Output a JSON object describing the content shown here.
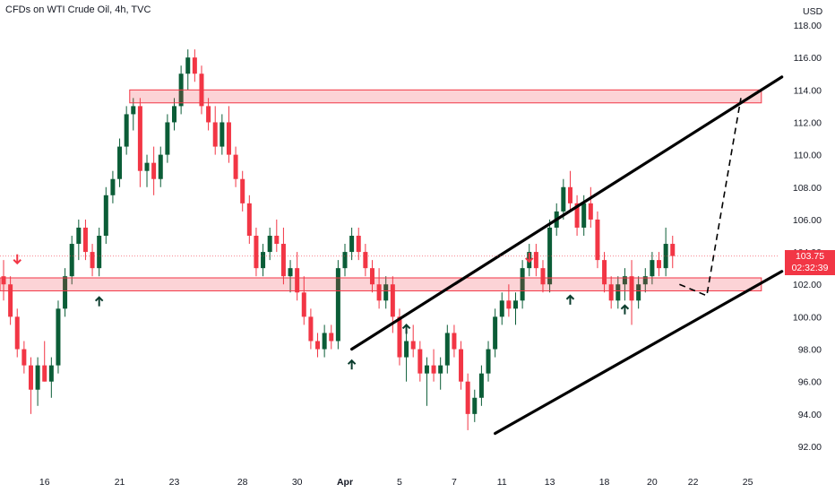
{
  "header": {
    "title": "CFDs on WTI Crude Oil, 4h, TVC",
    "currency": "USD"
  },
  "last_price": {
    "value": "103.75",
    "countdown": "02:32:39"
  },
  "colors": {
    "up": "#089981",
    "up_dark": "#0b5d37",
    "down": "#f23645",
    "zone_fill": "rgba(242,54,69,0.22)",
    "zone_stroke": "#f23645",
    "channel": "#000000"
  },
  "chart_data": {
    "type": "candlestick",
    "title": "CFDs on WTI Crude Oil, 4h, TVC",
    "ylim": [
      91,
      119
    ],
    "y_ticks": [
      "92.00",
      "94.00",
      "96.00",
      "98.00",
      "100.00",
      "102.00",
      "104.00",
      "106.00",
      "108.00",
      "110.00",
      "112.00",
      "114.00",
      "116.00",
      "118.00"
    ],
    "x_ticks": [
      {
        "label": "16",
        "bar": 6
      },
      {
        "label": "21",
        "bar": 17
      },
      {
        "label": "23",
        "bar": 25
      },
      {
        "label": "28",
        "bar": 35
      },
      {
        "label": "30",
        "bar": 43
      },
      {
        "label": "Apr",
        "bar": 50,
        "bold": true
      },
      {
        "label": "5",
        "bar": 58
      },
      {
        "label": "7",
        "bar": 66
      },
      {
        "label": "11",
        "bar": 73
      },
      {
        "label": "13",
        "bar": 80
      },
      {
        "label": "18",
        "bar": 88
      },
      {
        "label": "20",
        "bar": 95
      },
      {
        "label": "22",
        "bar": 101
      },
      {
        "label": "25",
        "bar": 109
      }
    ],
    "candles": [
      [
        102.5,
        103.5,
        101.0,
        102.0
      ],
      [
        102.0,
        102.5,
        99.5,
        100.0
      ],
      [
        100.0,
        100.5,
        97.5,
        98.0
      ],
      [
        98.0,
        98.5,
        96.5,
        97.0
      ],
      [
        97.0,
        97.5,
        94.0,
        95.5
      ],
      [
        95.5,
        97.5,
        94.5,
        97.0
      ],
      [
        97.0,
        98.5,
        96.0,
        96.0
      ],
      [
        96.0,
        97.5,
        95.0,
        97.0
      ],
      [
        97.0,
        101.0,
        96.5,
        100.5
      ],
      [
        100.5,
        103.0,
        100.0,
        102.5
      ],
      [
        102.5,
        105.0,
        102.0,
        104.5
      ],
      [
        104.5,
        106.0,
        103.5,
        105.5
      ],
      [
        105.5,
        106.0,
        103.5,
        104.0
      ],
      [
        104.0,
        104.5,
        102.5,
        103.0
      ],
      [
        103.0,
        105.5,
        102.5,
        105.0
      ],
      [
        105.0,
        108.0,
        104.5,
        107.5
      ],
      [
        107.5,
        109.0,
        107.0,
        108.5
      ],
      [
        108.5,
        111.0,
        108.0,
        110.5
      ],
      [
        110.5,
        113.0,
        110.0,
        112.5
      ],
      [
        112.5,
        113.5,
        111.5,
        113.0
      ],
      [
        113.0,
        113.5,
        108.0,
        109.0
      ],
      [
        109.0,
        110.0,
        108.0,
        109.5
      ],
      [
        109.5,
        110.5,
        107.5,
        108.5
      ],
      [
        108.5,
        110.5,
        108.0,
        110.0
      ],
      [
        110.0,
        112.5,
        109.5,
        112.0
      ],
      [
        112.0,
        113.5,
        111.5,
        113.0
      ],
      [
        113.0,
        115.5,
        112.5,
        115.0
      ],
      [
        115.0,
        116.5,
        114.0,
        116.0
      ],
      [
        116.0,
        116.5,
        114.5,
        115.0
      ],
      [
        115.0,
        115.5,
        112.5,
        113.0
      ],
      [
        113.0,
        113.5,
        111.5,
        112.0
      ],
      [
        112.0,
        113.0,
        110.0,
        110.5
      ],
      [
        110.5,
        112.5,
        110.0,
        112.0
      ],
      [
        112.0,
        113.0,
        109.5,
        110.0
      ],
      [
        110.0,
        110.5,
        108.0,
        108.5
      ],
      [
        108.5,
        109.0,
        106.5,
        107.0
      ],
      [
        107.0,
        107.5,
        104.5,
        105.0
      ],
      [
        105.0,
        105.5,
        102.5,
        103.0
      ],
      [
        103.0,
        104.5,
        102.5,
        104.0
      ],
      [
        104.0,
        105.5,
        103.5,
        105.0
      ],
      [
        105.0,
        106.0,
        104.0,
        104.5
      ],
      [
        104.5,
        105.5,
        102.0,
        102.5
      ],
      [
        102.5,
        103.5,
        101.5,
        103.0
      ],
      [
        103.0,
        104.0,
        101.0,
        101.5
      ],
      [
        101.5,
        102.5,
        99.5,
        100.0
      ],
      [
        100.0,
        100.5,
        98.0,
        98.5
      ],
      [
        98.5,
        99.0,
        97.5,
        98.0
      ],
      [
        98.0,
        99.5,
        97.5,
        99.0
      ],
      [
        99.0,
        99.5,
        98.0,
        98.5
      ],
      [
        98.5,
        103.5,
        98.0,
        103.0
      ],
      [
        103.0,
        104.5,
        102.5,
        104.0
      ],
      [
        104.0,
        105.5,
        103.5,
        105.0
      ],
      [
        105.0,
        105.5,
        103.5,
        104.0
      ],
      [
        104.0,
        104.5,
        102.5,
        103.0
      ],
      [
        103.0,
        103.5,
        101.5,
        102.0
      ],
      [
        102.0,
        103.0,
        100.5,
        101.0
      ],
      [
        101.0,
        102.5,
        100.5,
        102.0
      ],
      [
        102.0,
        102.5,
        99.0,
        100.0
      ],
      [
        100.0,
        100.5,
        97.0,
        97.5
      ],
      [
        97.5,
        99.0,
        96.0,
        98.5
      ],
      [
        98.5,
        99.5,
        97.5,
        98.0
      ],
      [
        98.0,
        98.5,
        96.0,
        96.5
      ],
      [
        96.5,
        97.5,
        94.5,
        97.0
      ],
      [
        97.0,
        98.0,
        96.0,
        96.5
      ],
      [
        96.5,
        97.5,
        95.5,
        97.0
      ],
      [
        97.0,
        99.5,
        96.5,
        99.0
      ],
      [
        99.0,
        99.5,
        97.5,
        98.0
      ],
      [
        98.0,
        98.5,
        95.5,
        96.0
      ],
      [
        96.0,
        96.5,
        93.0,
        94.0
      ],
      [
        94.0,
        95.5,
        93.5,
        95.0
      ],
      [
        95.0,
        97.0,
        94.5,
        96.5
      ],
      [
        96.5,
        98.5,
        96.0,
        98.0
      ],
      [
        98.0,
        100.5,
        97.5,
        100.0
      ],
      [
        100.0,
        101.5,
        99.5,
        101.0
      ],
      [
        101.0,
        102.0,
        100.0,
        100.5
      ],
      [
        100.5,
        101.5,
        99.5,
        101.0
      ],
      [
        101.0,
        103.5,
        100.5,
        103.0
      ],
      [
        103.0,
        104.5,
        102.5,
        104.0
      ],
      [
        104.0,
        104.5,
        102.5,
        103.0
      ],
      [
        103.0,
        103.5,
        101.5,
        102.0
      ],
      [
        102.0,
        106.0,
        101.5,
        105.5
      ],
      [
        105.5,
        107.0,
        105.0,
        106.5
      ],
      [
        106.5,
        108.5,
        106.0,
        108.0
      ],
      [
        108.0,
        109.0,
        106.5,
        107.0
      ],
      [
        107.0,
        107.5,
        105.0,
        105.5
      ],
      [
        105.5,
        107.5,
        105.0,
        107.0
      ],
      [
        107.0,
        108.0,
        105.5,
        106.0
      ],
      [
        106.0,
        106.5,
        103.0,
        103.5
      ],
      [
        103.5,
        104.0,
        101.5,
        102.0
      ],
      [
        102.0,
        102.5,
        100.5,
        101.0
      ],
      [
        101.0,
        102.5,
        100.5,
        102.0
      ],
      [
        102.0,
        103.0,
        101.0,
        102.5
      ],
      [
        102.5,
        103.5,
        99.5,
        101.0
      ],
      [
        101.0,
        102.5,
        100.5,
        102.0
      ],
      [
        102.0,
        103.0,
        101.5,
        102.5
      ],
      [
        102.5,
        104.0,
        102.0,
        103.5
      ],
      [
        103.5,
        104.0,
        102.5,
        103.0
      ],
      [
        103.0,
        105.5,
        102.5,
        104.5
      ],
      [
        104.5,
        105.0,
        103.0,
        103.75
      ]
    ],
    "zones": [
      {
        "name": "resistance",
        "low": 113.2,
        "high": 114.0,
        "bar_start": 19,
        "bar_end": 111
      },
      {
        "name": "support",
        "low": 101.6,
        "high": 102.4,
        "bar_start": 0,
        "bar_end": 111
      }
    ],
    "channel_lines": [
      {
        "from": [
          51,
          98.0
        ],
        "to": [
          114,
          114.8
        ]
      },
      {
        "from": [
          72,
          92.8
        ],
        "to": [
          114,
          102.8
        ]
      }
    ],
    "projection": [
      [
        99,
        102.0
      ],
      [
        103,
        101.3
      ],
      [
        108,
        113.5
      ]
    ],
    "arrows": [
      {
        "bar": 2,
        "price": 103.3,
        "dir": "down"
      },
      {
        "bar": 14,
        "price": 101.2,
        "dir": "up"
      },
      {
        "bar": 51,
        "price": 97.3,
        "dir": "up"
      },
      {
        "bar": 59,
        "price": 99.5,
        "dir": "up"
      },
      {
        "bar": 77,
        "price": 103.4,
        "dir": "down"
      },
      {
        "bar": 83,
        "price": 101.3,
        "dir": "up"
      },
      {
        "bar": 91,
        "price": 100.7,
        "dir": "up"
      }
    ],
    "last_value": 103.75
  }
}
